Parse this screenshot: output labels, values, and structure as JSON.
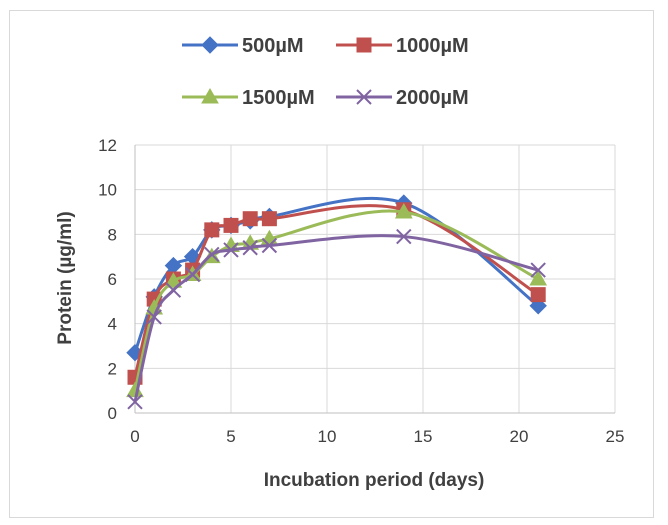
{
  "chart_data": {
    "type": "line",
    "title": "",
    "xlabel": "Incubation period (days)",
    "ylabel": "Protein (µg/ml)",
    "xlim": [
      0,
      25
    ],
    "ylim": [
      0,
      12
    ],
    "x_ticks": [
      "0",
      "5",
      "10",
      "15",
      "20",
      "25"
    ],
    "y_ticks": [
      "0",
      "2",
      "4",
      "6",
      "8",
      "10",
      "12"
    ],
    "grid": "vertical and horizontal",
    "legend_position": "top",
    "smoothed": true,
    "series": [
      {
        "name": "500µM",
        "color": "#4472c4",
        "marker": "diamond",
        "x": [
          0,
          1,
          2,
          3,
          4,
          5,
          6,
          7,
          14,
          21
        ],
        "y": [
          2.7,
          5.2,
          6.6,
          7.0,
          8.2,
          8.4,
          8.6,
          8.8,
          9.4,
          4.8
        ]
      },
      {
        "name": "1000µM",
        "color": "#c0504d",
        "marker": "square",
        "x": [
          0,
          1,
          2,
          3,
          4,
          5,
          6,
          7,
          14,
          21
        ],
        "y": [
          1.6,
          5.1,
          6.0,
          6.4,
          8.2,
          8.4,
          8.7,
          8.7,
          9.1,
          5.3
        ]
      },
      {
        "name": "1500µM",
        "color": "#9bbb59",
        "marker": "triangle",
        "x": [
          0,
          1,
          2,
          3,
          4,
          5,
          6,
          7,
          14,
          21
        ],
        "y": [
          1.0,
          4.7,
          5.9,
          6.2,
          7.0,
          7.5,
          7.6,
          7.8,
          9.0,
          6.0
        ]
      },
      {
        "name": "2000µM",
        "color": "#8064a2",
        "marker": "x",
        "x": [
          0,
          1,
          2,
          3,
          4,
          5,
          6,
          7,
          14,
          21
        ],
        "y": [
          0.5,
          4.3,
          5.5,
          6.2,
          7.1,
          7.3,
          7.4,
          7.5,
          7.9,
          6.4
        ]
      }
    ]
  }
}
